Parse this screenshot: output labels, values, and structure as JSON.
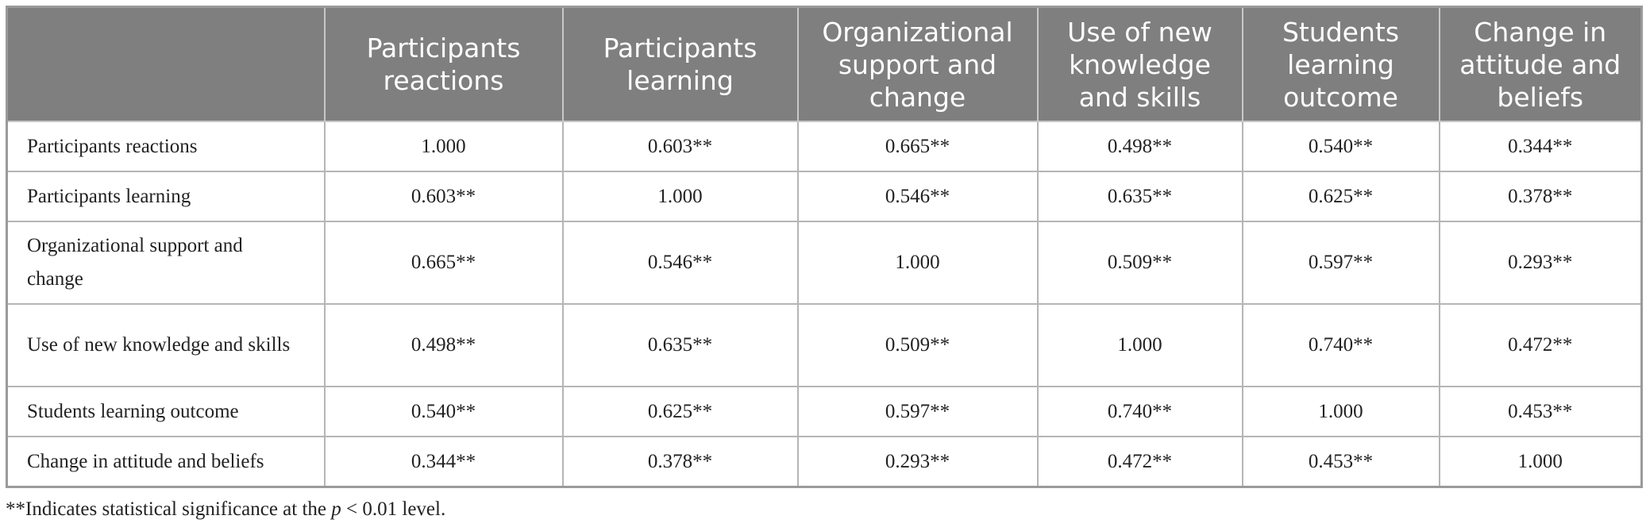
{
  "table": {
    "header": [
      "",
      "Participants reactions",
      "Participants learning",
      "Organizational support and change",
      "Use of new knowledge and skills",
      "Students learning outcome",
      "Change in attitude and beliefs"
    ],
    "rows": [
      [
        "Participants reactions",
        "1.000",
        "0.603**",
        "0.665**",
        "0.498**",
        "0.540**",
        "0.344**"
      ],
      [
        "Participants learning",
        "0.603**",
        "1.000",
        "0.546**",
        "0.635**",
        "0.625**",
        "0.378**"
      ],
      [
        "Organizational support and change",
        "0.665**",
        "0.546**",
        "1.000",
        "0.509**",
        "0.597**",
        "0.293**"
      ],
      [
        "Use of new knowledge and skills",
        "0.498**",
        "0.635**",
        "0.509**",
        "1.000",
        "0.740**",
        "0.472**"
      ],
      [
        "Students learning outcome",
        "0.540**",
        "0.625**",
        "0.597**",
        "0.740**",
        "1.000",
        "0.453**"
      ],
      [
        "Change in attitude and beliefs",
        "0.344**",
        "0.378**",
        "0.293**",
        "0.472**",
        "0.453**",
        "1.000"
      ]
    ]
  },
  "footnote": {
    "before": "**Indicates statistical significance at the ",
    "italic": "p",
    "after": " < 0.01 level."
  }
}
